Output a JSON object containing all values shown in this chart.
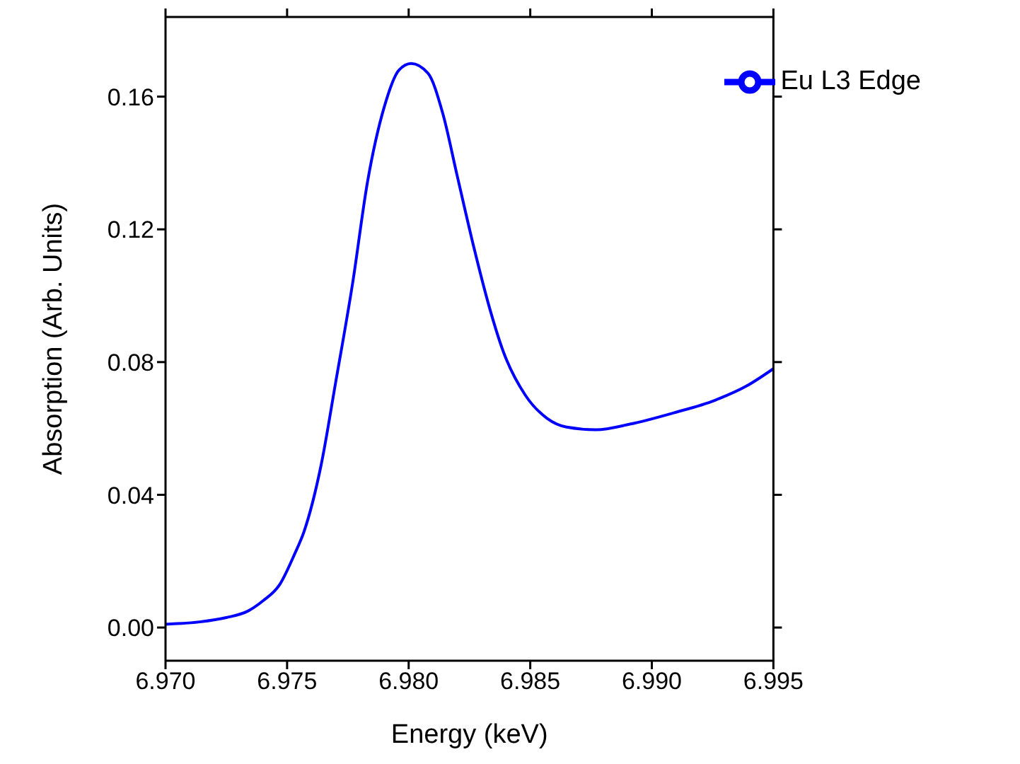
{
  "chart_data": {
    "type": "line",
    "xlabel": "Energy (keV)",
    "ylabel": "Absorption (Arb. Units)",
    "x": [
      6.97,
      6.9714,
      6.9725,
      6.9734,
      6.974,
      6.9747,
      6.9753,
      6.9757,
      6.9764,
      6.977,
      6.9777,
      6.9783,
      6.979,
      6.9796,
      6.9801,
      6.9808,
      6.9814,
      6.982,
      6.9827,
      6.9833,
      6.9839,
      6.9848,
      6.9857,
      6.9865,
      6.9877,
      6.9891,
      6.9909,
      6.9926,
      6.9939,
      6.995
    ],
    "series": [
      {
        "name": "Eu L3 Edge",
        "color": "#0000ff",
        "values": [
          0.001,
          0.0017,
          0.003,
          0.005,
          0.008,
          0.013,
          0.022,
          0.029,
          0.049,
          0.074,
          0.104,
          0.134,
          0.157,
          0.168,
          0.17,
          0.167,
          0.155,
          0.136,
          0.114,
          0.097,
          0.083,
          0.07,
          0.063,
          0.0604,
          0.0596,
          0.0613,
          0.0647,
          0.0685,
          0.0728,
          0.078
        ]
      }
    ],
    "xlim": [
      6.97,
      6.995
    ],
    "xticks": [
      {
        "value": 6.97,
        "label": "6.970"
      },
      {
        "value": 6.975,
        "label": "6.975"
      },
      {
        "value": 6.98,
        "label": "6.980"
      },
      {
        "value": 6.985,
        "label": "6.985"
      },
      {
        "value": 6.99,
        "label": "6.990"
      },
      {
        "value": 6.995,
        "label": "6.995"
      }
    ],
    "ylim": [
      -0.01,
      0.184
    ],
    "yticks": [
      {
        "value": 0,
        "label": "0.00"
      },
      {
        "value": 0.04,
        "label": "0.04"
      },
      {
        "value": 0.08,
        "label": "0.08"
      },
      {
        "value": 0.12,
        "label": "0.12"
      },
      {
        "value": 0.16,
        "label": "0.16"
      }
    ],
    "legend": "top right",
    "grid": false,
    "marker": "none",
    "line_style": "solid"
  }
}
